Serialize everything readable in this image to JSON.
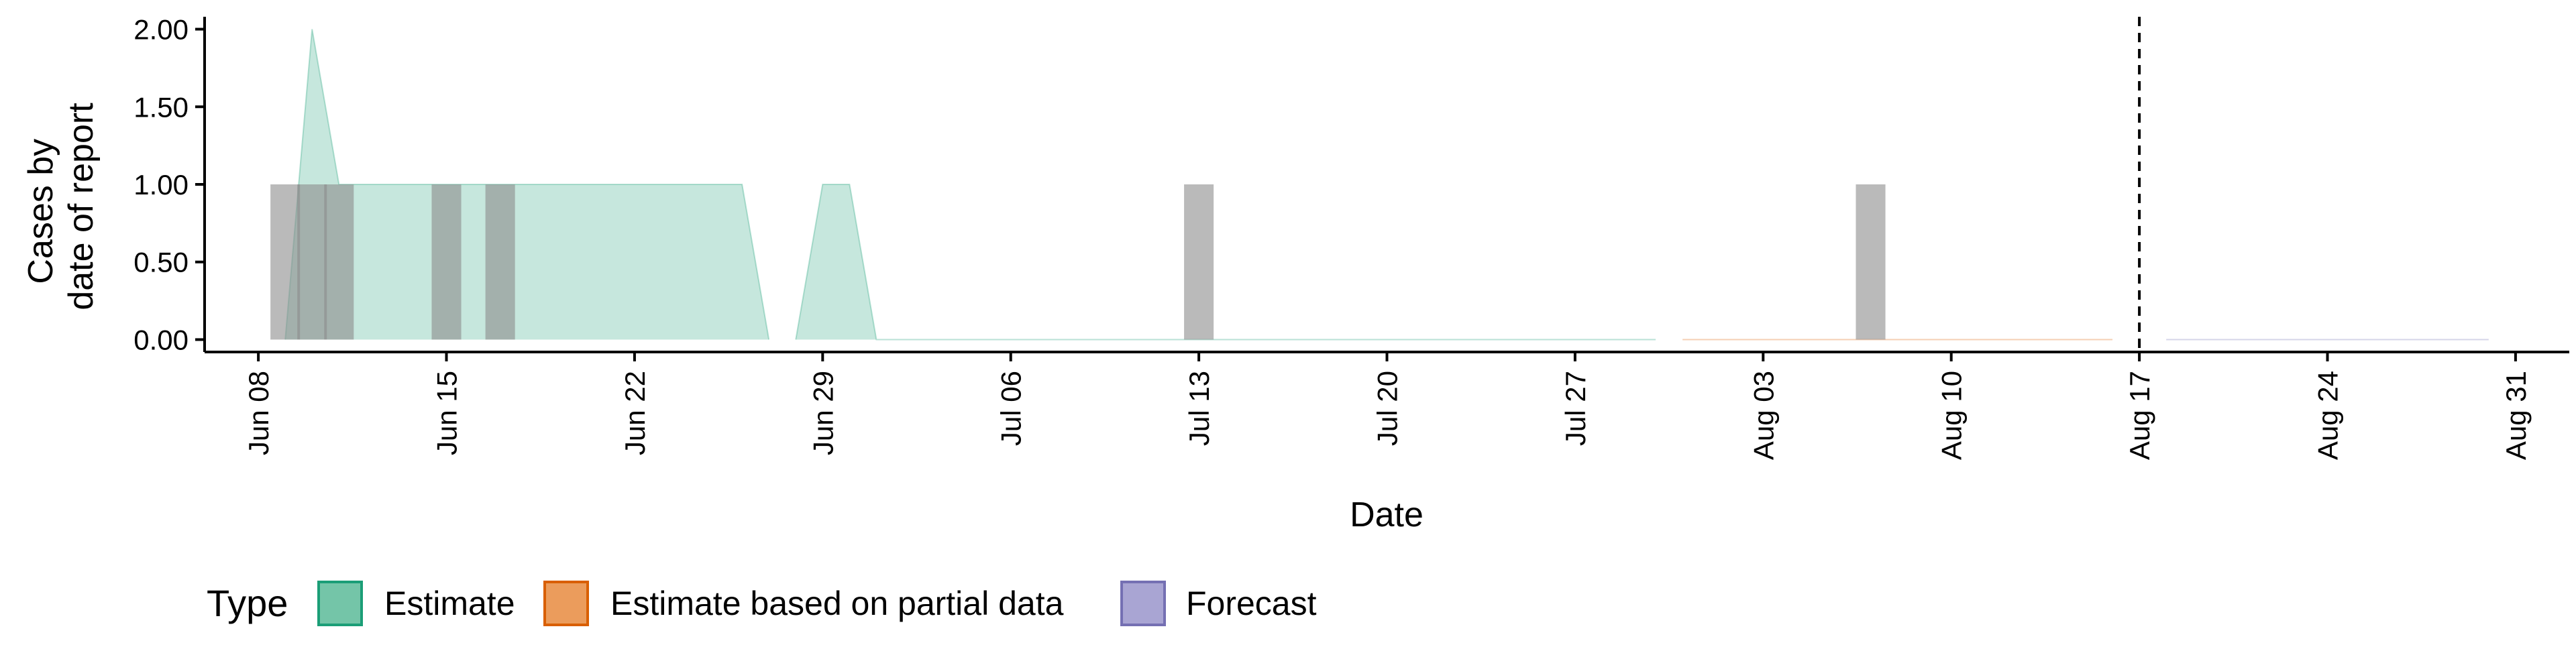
{
  "chart_data": {
    "type": "area",
    "xlabel": "Date",
    "ylabel": [
      "Cases by",
      "date of report"
    ],
    "x_range": [
      "2020-06-06",
      "2020-09-02"
    ],
    "ylim": [
      -0.08,
      2.08
    ],
    "y_ticks": [
      {
        "value": 0,
        "label": "0.00"
      },
      {
        "value": 0.5,
        "label": "0.50"
      },
      {
        "value": 1,
        "label": "1.00"
      },
      {
        "value": 1.5,
        "label": "1.50"
      },
      {
        "value": 2,
        "label": "2.00"
      }
    ],
    "x_ticks": [
      {
        "date": "2020-06-08",
        "label": "Jun 08"
      },
      {
        "date": "2020-06-15",
        "label": "Jun 15"
      },
      {
        "date": "2020-06-22",
        "label": "Jun 22"
      },
      {
        "date": "2020-06-29",
        "label": "Jun 29"
      },
      {
        "date": "2020-07-06",
        "label": "Jul 06"
      },
      {
        "date": "2020-07-13",
        "label": "Jul 13"
      },
      {
        "date": "2020-07-20",
        "label": "Jul 20"
      },
      {
        "date": "2020-07-27",
        "label": "Jul 27"
      },
      {
        "date": "2020-08-03",
        "label": "Aug 03"
      },
      {
        "date": "2020-08-10",
        "label": "Aug 10"
      },
      {
        "date": "2020-08-17",
        "label": "Aug 17"
      },
      {
        "date": "2020-08-24",
        "label": "Aug 24"
      },
      {
        "date": "2020-08-31",
        "label": "Aug 31"
      }
    ],
    "reported_cases": [
      {
        "date": "2020-06-09",
        "value": 1
      },
      {
        "date": "2020-06-10",
        "value": 1
      },
      {
        "date": "2020-06-11",
        "value": 1
      },
      {
        "date": "2020-06-15",
        "value": 1
      },
      {
        "date": "2020-06-17",
        "value": 1
      },
      {
        "date": "2020-07-13",
        "value": 1
      },
      {
        "date": "2020-08-07",
        "value": 1
      }
    ],
    "series": [
      {
        "name": "Estimate",
        "color": "#1b9e77",
        "segments": [
          [
            {
              "date": "2020-06-09",
              "value": 0
            },
            {
              "date": "2020-06-10",
              "value": 2
            },
            {
              "date": "2020-06-11",
              "value": 1
            },
            {
              "date": "2020-06-26",
              "value": 1
            },
            {
              "date": "2020-06-27",
              "value": 0
            }
          ],
          [
            {
              "date": "2020-06-28",
              "value": 0
            },
            {
              "date": "2020-06-29",
              "value": 1
            },
            {
              "date": "2020-06-30",
              "value": 1
            },
            {
              "date": "2020-07-01",
              "value": 0
            },
            {
              "date": "2020-07-30",
              "value": 0
            }
          ]
        ]
      },
      {
        "name": "Estimate based on partial data",
        "color": "#d95f02",
        "segments": [
          [
            {
              "date": "2020-07-31",
              "value": 0
            },
            {
              "date": "2020-08-16",
              "value": 0
            }
          ]
        ]
      },
      {
        "name": "Forecast",
        "color": "#7570b3",
        "segments": [
          [
            {
              "date": "2020-08-18",
              "value": 0
            },
            {
              "date": "2020-08-30",
              "value": 0
            }
          ]
        ]
      }
    ],
    "forecast_start": "2020-08-17",
    "grid": false
  },
  "legend": {
    "title": "Type",
    "items": [
      {
        "label": "Estimate",
        "fill": "#74c5a8",
        "stroke": "#1b9e77"
      },
      {
        "label": "Estimate based on partial data",
        "fill": "#eb9c5c",
        "stroke": "#d95f02"
      },
      {
        "label": "Forecast",
        "fill": "#a9a5d3",
        "stroke": "#7570b3"
      }
    ]
  }
}
